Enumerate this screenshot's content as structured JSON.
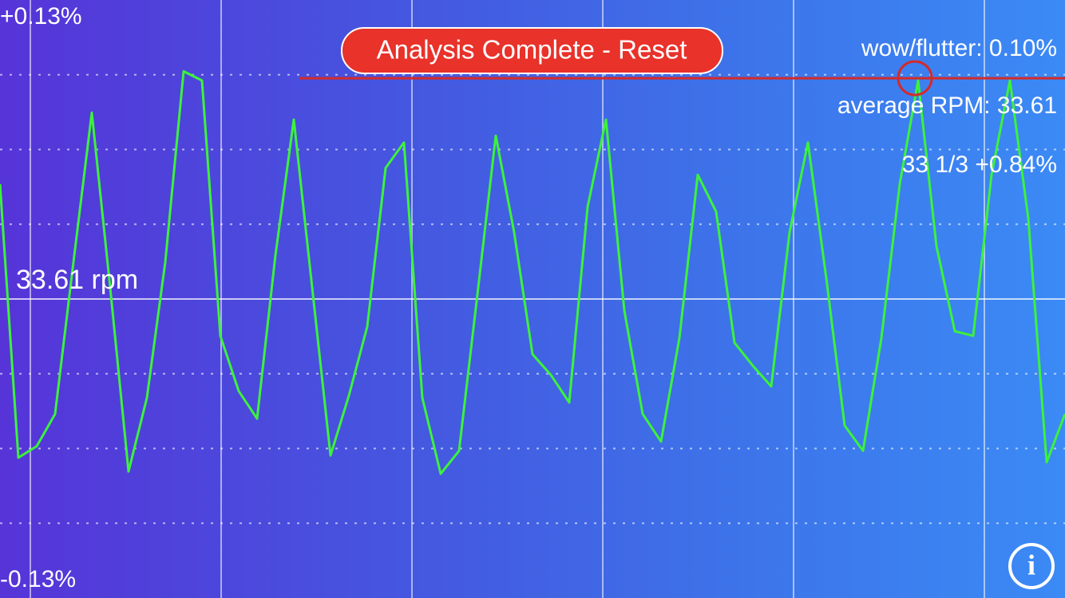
{
  "button": "Analysis Complete - Reset",
  "stats": {
    "wow_flutter": "wow/flutter:  0.10%",
    "average_rpm": "average RPM:  33.61",
    "deviation": "33 1/3 +0.84%"
  },
  "info_icon": "i",
  "chart_data": {
    "type": "line",
    "ylim": [
      -0.13,
      0.13
    ],
    "yticks": [
      {
        "value": 0.13,
        "label": "+0.13%"
      },
      {
        "value": 0,
        "label": "33.61 rpm"
      },
      {
        "value": -0.13,
        "label": "-0.13%"
      }
    ],
    "ygrid": [
      0.0975,
      0.065,
      0.0325,
      -0.0325,
      -0.065,
      -0.0975
    ],
    "peak": 0.096,
    "peak_color": "#d42a2a",
    "series": [
      {
        "color": "#3cf23c",
        "values": [
          0.05,
          -0.069,
          -0.064,
          -0.05,
          0.016,
          0.081,
          0.005,
          -0.075,
          -0.043,
          0.016,
          0.099,
          0.095,
          -0.016,
          -0.04,
          -0.052,
          0.019,
          0.078,
          0.005,
          -0.068,
          -0.042,
          -0.012,
          0.057,
          0.068,
          -0.043,
          -0.076,
          -0.066,
          0.002,
          0.071,
          0.029,
          -0.024,
          -0.033,
          -0.045,
          0.04,
          0.078,
          -0.005,
          -0.05,
          -0.062,
          -0.017,
          0.054,
          0.038,
          -0.019,
          -0.029,
          -0.038,
          0.029,
          0.068,
          0.009,
          -0.055,
          -0.066,
          -0.017,
          0.05,
          0.095,
          0.023,
          -0.014,
          -0.016,
          0.054,
          0.095,
          0.035,
          -0.071,
          -0.05
        ]
      }
    ]
  }
}
